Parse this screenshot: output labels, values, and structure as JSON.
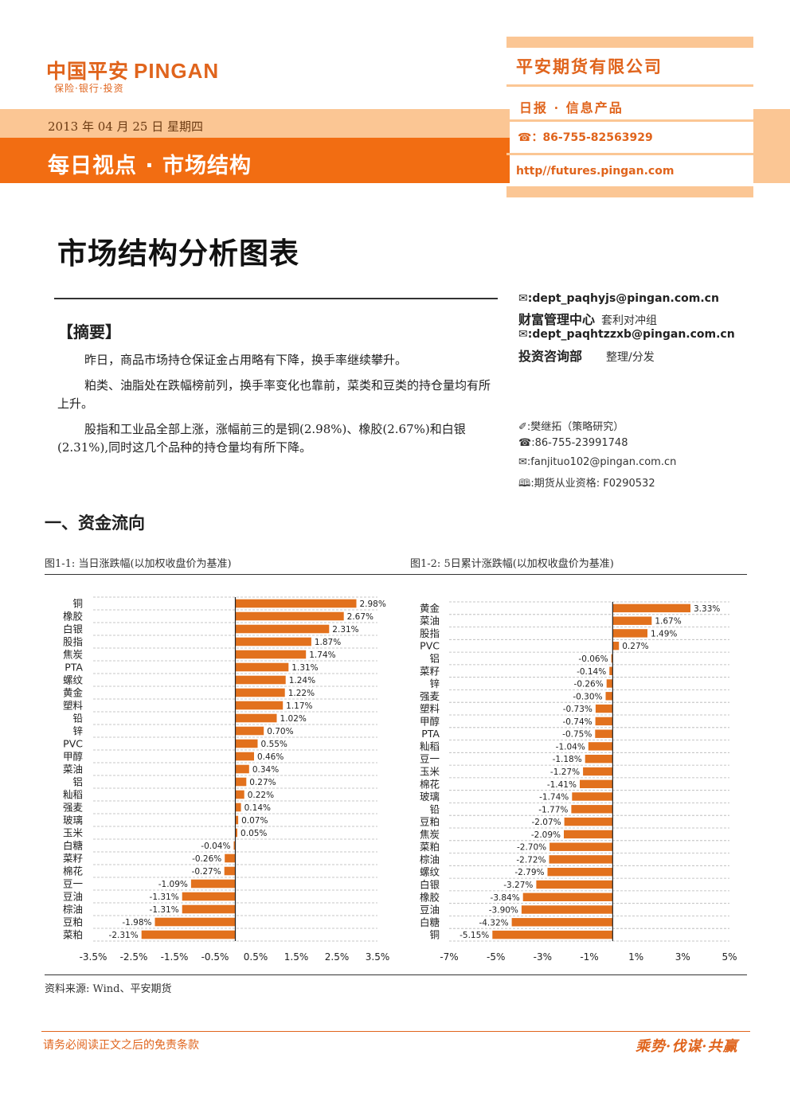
{
  "logo": {
    "cn": "中国平安",
    "en": "PINGAN",
    "sub": "保险·银行·投资"
  },
  "header": {
    "date": "2013 年 04 月 25 日 星期四",
    "title": "每日视点 · 市场结构"
  },
  "right_panel": {
    "company": "平安期货有限公司",
    "subtitle": "日报 · 信息产品",
    "phone": "☎：86-755-82563929",
    "url": "http//futures.pingan.com"
  },
  "main_title": "市场结构分析图表",
  "summary": {
    "heading": "【摘要】",
    "paragraphs": [
      "昨日，商品市场持仓保证金占用略有下降，换手率继续攀升。",
      "粕类、油脂处在跌幅榜前列，换手率变化也靠前，菜类和豆类的持仓量均有所上升。",
      "股指和工业品全部上涨，涨幅前三的是铜(2.98%)、橡胶(2.67%)和白银(2.31%),同时这几个品种的持仓量均有所下降。"
    ]
  },
  "contacts": {
    "email1": "✉:dept_paqhyjs@pingan.com.cn",
    "dept1": "财富管理中心",
    "dept1_sub": "套利对冲组",
    "email2": "✉:dept_paqhtzzxb@pingan.com.cn",
    "dept2": "投资咨询部",
    "dept2_sub": "整理/分发"
  },
  "author": {
    "name": "✐:樊继拓（策略研究）",
    "phone": "☎:86-755-23991748",
    "email": "✉:fanjituo102@pingan.com.cn",
    "license": "🕮:期货从业资格: F0290532"
  },
  "section_title": "一、资金流向",
  "source": "资料来源: Wind、平安期货",
  "disclaimer": "请务必阅读正文之后的免责条款",
  "slogan": "乘势·伐谋·共赢",
  "colors": {
    "accent": "#e0641c",
    "bar": "#e2711d",
    "band_light": "#fbc694",
    "band_dark": "#f26d12"
  },
  "chart_data": [
    {
      "type": "bar",
      "orientation": "horizontal",
      "title": "图1-1: 当日涨跌幅(以加权收盘价为基准)",
      "categories": [
        "铜",
        "橡胶",
        "白银",
        "股指",
        "焦炭",
        "PTA",
        "螺纹",
        "黄金",
        "塑料",
        "铅",
        "锌",
        "PVC",
        "甲醇",
        "菜油",
        "铝",
        "籼稻",
        "强麦",
        "玻璃",
        "玉米",
        "白糖",
        "菜籽",
        "棉花",
        "豆一",
        "豆油",
        "棕油",
        "豆粕",
        "菜粕"
      ],
      "values": [
        2.98,
        2.67,
        2.31,
        1.87,
        1.74,
        1.31,
        1.24,
        1.22,
        1.17,
        1.02,
        0.7,
        0.55,
        0.46,
        0.34,
        0.27,
        0.22,
        0.14,
        0.07,
        0.05,
        -0.04,
        -0.26,
        -0.27,
        -1.09,
        -1.31,
        -1.31,
        -1.98,
        -2.31
      ],
      "labels": [
        "2.98%",
        "2.67%",
        "2.31%",
        "1.87%",
        "1.74%",
        "1.31%",
        "1.24%",
        "1.22%",
        "1.17%",
        "1.02%",
        "0.70%",
        "0.55%",
        "0.46%",
        "0.34%",
        "0.27%",
        "0.22%",
        "0.14%",
        "0.07%",
        "0.05%",
        "-0.04%",
        "-0.26%",
        "-0.27%",
        "-1.09%",
        "-1.31%",
        "-1.31%",
        "-1.98%",
        "-2.31%"
      ],
      "xlim": [
        -3.5,
        3.5
      ],
      "ticks": [
        -3.5,
        -2.5,
        -1.5,
        -0.5,
        0.5,
        1.5,
        2.5,
        3.5
      ],
      "tick_labels": [
        "-3.5%",
        "-2.5%",
        "-1.5%",
        "-0.5%",
        "0.5%",
        "1.5%",
        "2.5%",
        "3.5%"
      ],
      "grid": true
    },
    {
      "type": "bar",
      "orientation": "horizontal",
      "title": "图1-2: 5日累计涨跌幅(以加权收盘价为基准)",
      "categories": [
        "黄金",
        "菜油",
        "股指",
        "PVC",
        "铝",
        "菜籽",
        "锌",
        "强麦",
        "塑料",
        "甲醇",
        "PTA",
        "籼稻",
        "豆一",
        "玉米",
        "棉花",
        "玻璃",
        "铅",
        "豆粕",
        "焦炭",
        "菜粕",
        "棕油",
        "螺纹",
        "白银",
        "橡胶",
        "豆油",
        "白糖",
        "铜"
      ],
      "values": [
        3.33,
        1.67,
        1.49,
        0.27,
        -0.06,
        -0.14,
        -0.26,
        -0.3,
        -0.73,
        -0.74,
        -0.75,
        -1.04,
        -1.18,
        -1.27,
        -1.41,
        -1.74,
        -1.77,
        -2.07,
        -2.09,
        -2.7,
        -2.72,
        -2.79,
        -3.27,
        -3.84,
        -3.9,
        -4.32,
        -5.15
      ],
      "labels": [
        "3.33%",
        "1.67%",
        "1.49%",
        "0.27%",
        "-0.06%",
        "-0.14%",
        "-0.26%",
        "-0.30%",
        "-0.73%",
        "-0.74%",
        "-0.75%",
        "-1.04%",
        "-1.18%",
        "-1.27%",
        "-1.41%",
        "-1.74%",
        "-1.77%",
        "-2.07%",
        "-2.09%",
        "-2.70%",
        "-2.72%",
        "-2.79%",
        "-3.27%",
        "-3.84%",
        "-3.90%",
        "-4.32%",
        "-5.15%"
      ],
      "xlim": [
        -7,
        5
      ],
      "ticks": [
        -7,
        -5,
        -3,
        -1,
        1,
        3,
        5
      ],
      "tick_labels": [
        "-7%",
        "-5%",
        "-3%",
        "-1%",
        "1%",
        "3%",
        "5%"
      ],
      "grid": true
    }
  ]
}
